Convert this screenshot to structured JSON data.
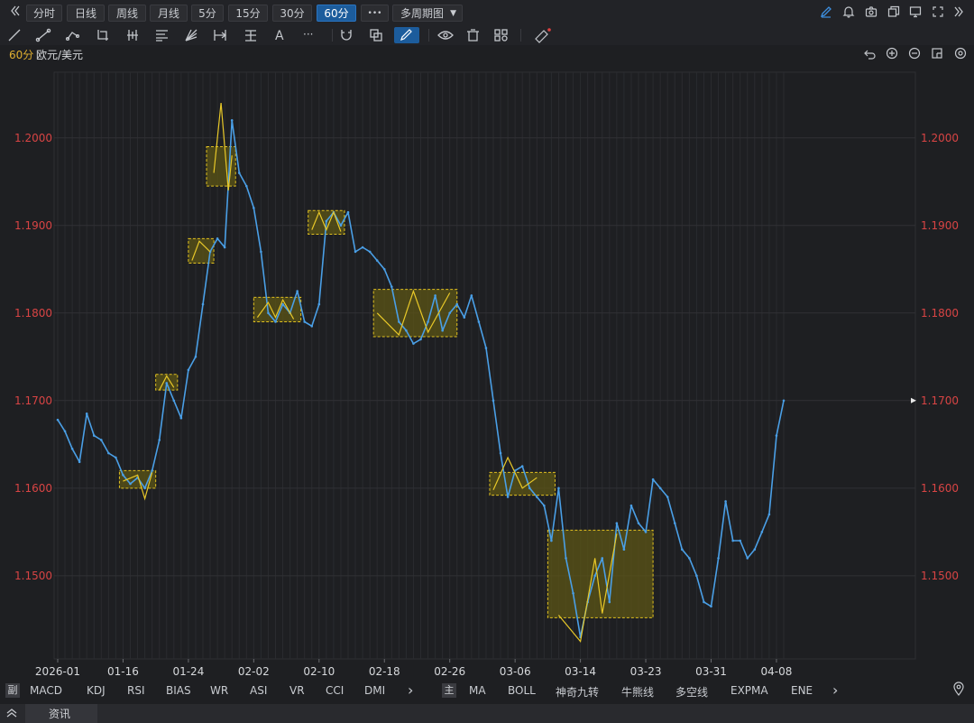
{
  "toolbar": {
    "collapse_icon": "double-chevron-left",
    "periods": [
      "分时",
      "日线",
      "周线",
      "月线",
      "5分",
      "15分",
      "30分",
      "60分"
    ],
    "active_period": "60分",
    "more_label": "•••",
    "multi_period_label": "多周期图",
    "right_icons": [
      "pen-edit-icon",
      "bell-icon",
      "camera-icon",
      "copy-window-icon",
      "monitor-icon",
      "fullscreen-icon",
      "double-chevron-right-icon"
    ]
  },
  "drawing_tools": [
    "line-tool-icon",
    "ray-tool-icon",
    "polyline-tool-icon",
    "crop-tool-icon",
    "bars-tool-icon",
    "fib-tool-icon",
    "fan-tool-icon",
    "measure-tool-icon",
    "pitchfork-tool-icon",
    "text-tool-icon",
    "more-tools-icon",
    "magnet-icon",
    "layer-icon",
    "pen-icon",
    "eye-icon",
    "trash-icon",
    "settings-grid-icon",
    "ruler-icon"
  ],
  "info": {
    "period": "60分",
    "symbol": "欧元/美元",
    "right_icons": [
      "undo-icon",
      "zoom-in-icon",
      "zoom-out-icon",
      "layout-icon",
      "settings-icon"
    ]
  },
  "colors": {
    "price_line": "#4a9fe6",
    "box_fill": "#5c5616",
    "box_stroke": "#e0c020",
    "zigzag": "#e8c828",
    "axis_label": "#d84444",
    "grid": "#2a2b2f",
    "background": "#1e1f22"
  },
  "chart_data": {
    "type": "line",
    "title": "",
    "xlabel": "",
    "ylabel": "",
    "ylim": [
      1.1405,
      1.2075
    ],
    "yticks": [
      "1.2000",
      "1.1900",
      "1.1800",
      "1.1700",
      "1.1600",
      "1.1500"
    ],
    "ytick_values": [
      1.2,
      1.19,
      1.18,
      1.17,
      1.16,
      1.15
    ],
    "xticks": [
      "2026-01",
      "01-16",
      "01-24",
      "02-02",
      "02-10",
      "02-18",
      "02-26",
      "03-06",
      "03-14",
      "03-23",
      "03-31",
      "04-08"
    ],
    "xrange": [
      0,
      100
    ],
    "xtick_positions": [
      0,
      9,
      18,
      27,
      36,
      45,
      54,
      63,
      72,
      81,
      90,
      99
    ],
    "current_price_marker": 1.17,
    "series": [
      {
        "x": [
          0,
          1,
          2,
          3,
          4,
          5,
          6,
          7,
          8,
          9,
          10,
          11,
          12,
          13,
          14,
          15,
          16,
          17,
          18,
          19,
          20,
          21,
          22,
          23,
          24,
          25,
          26,
          27,
          28,
          29,
          30,
          31,
          32,
          33,
          34,
          35,
          36,
          37,
          38,
          39,
          40,
          41,
          42,
          43,
          44,
          45,
          46,
          47,
          48,
          49,
          50,
          51,
          52,
          53,
          54,
          55,
          56,
          57,
          58,
          59,
          60,
          61,
          62,
          63,
          64,
          65,
          66,
          67,
          68,
          69,
          70,
          71,
          72,
          73,
          74,
          75,
          76,
          77,
          78,
          79,
          80,
          81,
          82,
          83,
          84,
          85,
          86,
          87,
          88,
          89,
          90,
          91,
          92,
          93,
          94,
          95,
          96,
          97,
          98,
          99,
          100
        ],
        "values": [
          1.1678,
          1.1665,
          1.1645,
          1.163,
          1.1685,
          1.166,
          1.1655,
          1.164,
          1.1635,
          1.1615,
          1.1605,
          1.1612,
          1.16,
          1.162,
          1.1655,
          1.172,
          1.17,
          1.168,
          1.1735,
          1.175,
          1.181,
          1.187,
          1.1885,
          1.1875,
          1.202,
          1.196,
          1.1945,
          1.192,
          1.187,
          1.18,
          1.179,
          1.181,
          1.18,
          1.1825,
          1.179,
          1.1785,
          1.181,
          1.1905,
          1.1915,
          1.19,
          1.1915,
          1.187,
          1.1875,
          1.187,
          1.186,
          1.185,
          1.183,
          1.179,
          1.178,
          1.1765,
          1.177,
          1.179,
          1.182,
          1.178,
          1.18,
          1.181,
          1.1795,
          1.182,
          1.179,
          1.176,
          1.17,
          1.164,
          1.159,
          1.162,
          1.1625,
          1.16,
          1.159,
          1.158,
          1.154,
          1.16,
          1.152,
          1.148,
          1.143,
          1.147,
          1.15,
          1.152,
          1.147,
          1.156,
          1.153,
          1.158,
          1.156,
          1.155,
          1.161,
          1.16,
          1.159,
          1.156,
          1.153,
          1.152,
          1.15,
          1.147,
          1.1465,
          1.152,
          1.1585,
          1.154,
          1.154,
          1.152,
          1.153,
          1.155,
          1.157,
          1.166,
          1.17
        ]
      }
    ],
    "boxes": [
      {
        "x0": 8.5,
        "x1": 13.5,
        "y0": 1.16,
        "y1": 1.162
      },
      {
        "x0": 13.5,
        "x1": 16.5,
        "y0": 1.1712,
        "y1": 1.173
      },
      {
        "x0": 18.0,
        "x1": 21.5,
        "y0": 1.1857,
        "y1": 1.1885
      },
      {
        "x0": 20.5,
        "x1": 24.5,
        "y0": 1.1945,
        "y1": 1.199
      },
      {
        "x0": 27.0,
        "x1": 33.5,
        "y0": 1.179,
        "y1": 1.1818
      },
      {
        "x0": 34.5,
        "x1": 39.5,
        "y0": 1.189,
        "y1": 1.1917
      },
      {
        "x0": 43.5,
        "x1": 55.0,
        "y0": 1.1773,
        "y1": 1.1827
      },
      {
        "x0": 59.5,
        "x1": 68.5,
        "y0": 1.1592,
        "y1": 1.1618
      },
      {
        "x0": 67.5,
        "x1": 82.0,
        "y0": 1.1452,
        "y1": 1.1552
      }
    ],
    "zigzags": [
      [
        [
          9,
          1.1608
        ],
        [
          11,
          1.1615
        ],
        [
          12,
          1.1588
        ],
        [
          13,
          1.1618
        ]
      ],
      [
        [
          14,
          1.1712
        ],
        [
          15,
          1.1728
        ],
        [
          16,
          1.1715
        ]
      ],
      [
        [
          18.5,
          1.186
        ],
        [
          19.5,
          1.1882
        ],
        [
          21,
          1.187
        ]
      ],
      [
        [
          21.5,
          1.196
        ],
        [
          22.5,
          1.204
        ],
        [
          23.5,
          1.194
        ],
        [
          24,
          1.198
        ]
      ],
      [
        [
          27.5,
          1.1795
        ],
        [
          29,
          1.1812
        ],
        [
          30,
          1.1795
        ],
        [
          31,
          1.1815
        ],
        [
          32.5,
          1.1793
        ]
      ],
      [
        [
          35,
          1.1895
        ],
        [
          36,
          1.1915
        ],
        [
          37,
          1.1895
        ],
        [
          38,
          1.1915
        ],
        [
          39,
          1.1893
        ]
      ],
      [
        [
          44,
          1.18
        ],
        [
          47,
          1.1775
        ],
        [
          49,
          1.1825
        ],
        [
          51,
          1.1778
        ],
        [
          54,
          1.1823
        ]
      ],
      [
        [
          60,
          1.1598
        ],
        [
          62,
          1.1635
        ],
        [
          64,
          1.16
        ],
        [
          66,
          1.1612
        ]
      ],
      [
        [
          69,
          1.1455
        ],
        [
          72,
          1.1425
        ],
        [
          74,
          1.152
        ],
        [
          75,
          1.1457
        ],
        [
          77,
          1.1548
        ]
      ]
    ]
  },
  "indicators": {
    "sub_label": "副",
    "sub": [
      "MACD",
      "KDJ",
      "RSI",
      "BIAS",
      "WR",
      "ASI",
      "VR",
      "CCI",
      "DMI"
    ],
    "main_label": "主",
    "main": [
      "MA",
      "BOLL",
      "神奇九转",
      "牛熊线",
      "多空线",
      "EXPMA",
      "ENE"
    ],
    "more_arrow": "›",
    "location_icon": "location-pin-icon"
  },
  "news": {
    "collapse_icon": "double-chevron-up-icon",
    "label": "资讯"
  }
}
